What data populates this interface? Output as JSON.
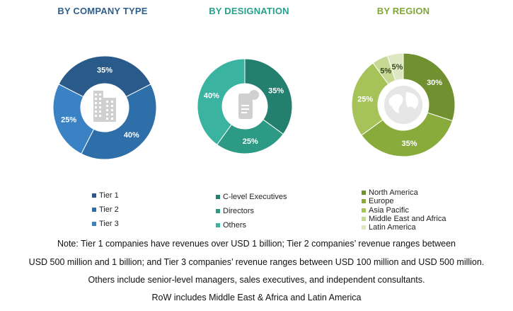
{
  "chart_data": [
    {
      "type": "pie",
      "title": "BY COMPANY TYPE",
      "title_color": "#2e5f8a",
      "slices": [
        {
          "label": "Tier 1",
          "value": 35,
          "display": "35%",
          "color": "#2a5a89"
        },
        {
          "label": "Tier 2",
          "value": 40,
          "display": "40%",
          "color": "#2e6ea9"
        },
        {
          "label": "Tier 3",
          "value": 25,
          "display": "25%",
          "color": "#3a82c4"
        }
      ],
      "center_icon": "building-icon"
    },
    {
      "type": "pie",
      "title": "BY DESIGNATION",
      "title_color": "#2aa08b",
      "slices": [
        {
          "label": "C-level Executives",
          "value": 35,
          "display": "35%",
          "color": "#23806e"
        },
        {
          "label": "Directors",
          "value": 25,
          "display": "25%",
          "color": "#2c9a84"
        },
        {
          "label": "Others",
          "value": 40,
          "display": "40%",
          "color": "#3ab4a0"
        }
      ],
      "center_icon": "id-badge-icon"
    },
    {
      "type": "pie",
      "title": "BY REGION",
      "title_color": "#7fa634",
      "slices": [
        {
          "label": "North America",
          "value": 30,
          "display": "30%",
          "color": "#71902f"
        },
        {
          "label": "Europe",
          "value": 35,
          "display": "35%",
          "color": "#88ab3c"
        },
        {
          "label": "Asia Pacific",
          "value": 25,
          "display": "25%",
          "color": "#a6c35a"
        },
        {
          "label": "Middle East and Africa",
          "value": 5,
          "display": "5%",
          "color": "#c6d894"
        },
        {
          "label": "Latin America",
          "value": 5,
          "display": "5%",
          "color": "#dde8c2"
        }
      ],
      "center_icon": "globe-icon"
    }
  ],
  "notes": [
    "Note: Tier 1 companies have revenues over USD 1 billion; Tier 2 companies’ revenue ranges between",
    "USD 500 million and 1 billion; and Tier 3 companies’ revenue ranges between USD 100 million and USD 500 million.",
    "Others include senior-level managers, sales executives, and independent consultants.",
    "RoW includes Middle East & Africa and Latin America"
  ]
}
